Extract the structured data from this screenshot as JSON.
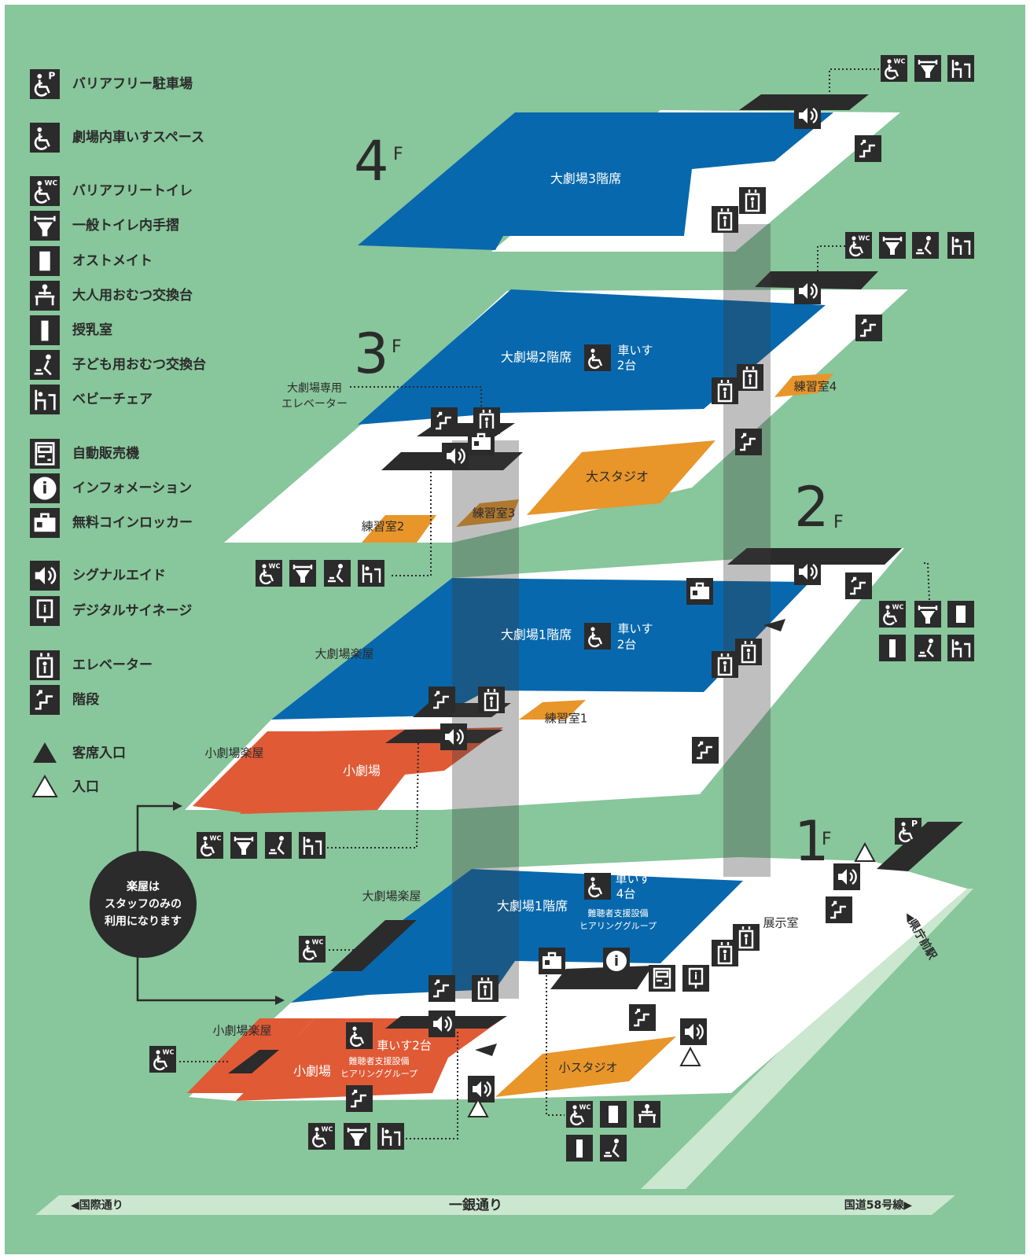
{
  "legend": [
    "バリアフリー駐車場",
    "劇場内車いすスペース",
    "バリアフリートイレ",
    "一般トイレ内手摺",
    "オストメイト",
    "大人用おむつ交換台",
    "授乳室",
    "子ども用おむつ交換台",
    "ベビーチェア",
    "自動販売機",
    "インフォメーション",
    "無料コインロッカー",
    "シグナルエイド",
    "デジタルサイネージ",
    "エレベーター",
    "階段",
    "客席入口",
    "入口"
  ],
  "icon_text": {
    "wc": "WC",
    "p": "P",
    "info": "i"
  },
  "floors": [
    {
      "number": "4",
      "suffix": "F",
      "labels": [
        "大劇場3階席"
      ]
    },
    {
      "number": "3",
      "suffix": "F",
      "labels": [
        "大劇場2階席",
        "車いす",
        "2台",
        "大劇場専用",
        "エレベーター",
        "練習室4",
        "大スタジオ",
        "練習室3",
        "練習室2"
      ]
    },
    {
      "number": "2",
      "suffix": "F",
      "labels": [
        "大劇場1階席",
        "車いす",
        "2台",
        "大劇場楽屋",
        "練習室1",
        "小劇場楽屋",
        "小劇場"
      ]
    },
    {
      "number": "1",
      "suffix": "F",
      "labels": [
        "車いす",
        "4台",
        "大劇場1階席",
        "難聴者支援設備",
        "ヒアリンググループ",
        "大劇場楽屋",
        "展示室",
        "小劇場楽屋",
        "車いす2台",
        "小劇場",
        "難聴者支援設備",
        "ヒアリンググループ",
        "小スタジオ"
      ]
    }
  ],
  "note": [
    "楽屋は",
    "スタッフのみの",
    "利用になります"
  ],
  "roads": [
    "◀国際通り",
    "一銀通り",
    "国道58号線▶",
    "◀県庁前駅"
  ]
}
